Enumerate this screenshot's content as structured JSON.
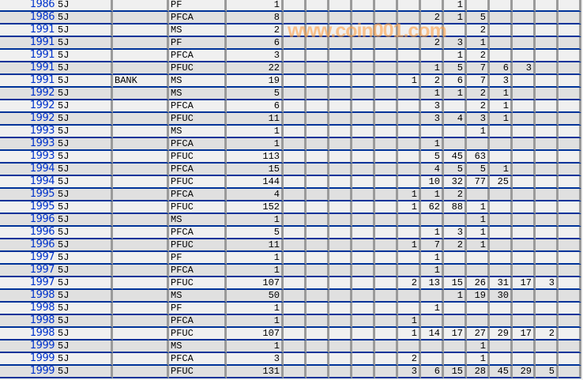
{
  "table": {
    "rows": [
      {
        "year": "1986",
        "code": "5J",
        "note": "",
        "grade": "PF",
        "count": "1",
        "cells": [
          "",
          "",
          "",
          "",
          "",
          "",
          "",
          "1",
          "",
          "",
          "",
          "",
          ""
        ]
      },
      {
        "year": "1986",
        "code": "5J",
        "note": "",
        "grade": "PFCA",
        "count": "8",
        "cells": [
          "",
          "",
          "",
          "",
          "",
          "",
          "2",
          "1",
          "5",
          "",
          "",
          "",
          ""
        ]
      },
      {
        "year": "1991",
        "code": "5J",
        "note": "",
        "grade": "MS",
        "count": "2",
        "cells": [
          "",
          "",
          "",
          "",
          "",
          "",
          "",
          "",
          "2",
          "",
          "",
          "",
          ""
        ]
      },
      {
        "year": "1991",
        "code": "5J",
        "note": "",
        "grade": "PF",
        "count": "6",
        "cells": [
          "",
          "",
          "",
          "",
          "",
          "",
          "2",
          "3",
          "1",
          "",
          "",
          "",
          ""
        ]
      },
      {
        "year": "1991",
        "code": "5J",
        "note": "",
        "grade": "PFCA",
        "count": "3",
        "cells": [
          "",
          "",
          "",
          "",
          "",
          "",
          "",
          "1",
          "2",
          "",
          "",
          "",
          ""
        ]
      },
      {
        "year": "1991",
        "code": "5J",
        "note": "",
        "grade": "PFUC",
        "count": "22",
        "cells": [
          "",
          "",
          "",
          "",
          "",
          "",
          "1",
          "5",
          "7",
          "6",
          "3",
          "",
          ""
        ]
      },
      {
        "year": "1991",
        "code": "5J",
        "note": "BANK",
        "grade": "MS",
        "count": "19",
        "cells": [
          "",
          "",
          "",
          "",
          "",
          "1",
          "2",
          "6",
          "7",
          "3",
          "",
          "",
          ""
        ]
      },
      {
        "year": "1992",
        "code": "5J",
        "note": "",
        "grade": "MS",
        "count": "5",
        "cells": [
          "",
          "",
          "",
          "",
          "",
          "",
          "1",
          "1",
          "2",
          "1",
          "",
          "",
          ""
        ]
      },
      {
        "year": "1992",
        "code": "5J",
        "note": "",
        "grade": "PFCA",
        "count": "6",
        "cells": [
          "",
          "",
          "",
          "",
          "",
          "",
          "3",
          "",
          "2",
          "1",
          "",
          "",
          ""
        ]
      },
      {
        "year": "1992",
        "code": "5J",
        "note": "",
        "grade": "PFUC",
        "count": "11",
        "cells": [
          "",
          "",
          "",
          "",
          "",
          "",
          "3",
          "4",
          "3",
          "1",
          "",
          "",
          ""
        ]
      },
      {
        "year": "1993",
        "code": "5J",
        "note": "",
        "grade": "MS",
        "count": "1",
        "cells": [
          "",
          "",
          "",
          "",
          "",
          "",
          "",
          "",
          "1",
          "",
          "",
          "",
          ""
        ]
      },
      {
        "year": "1993",
        "code": "5J",
        "note": "",
        "grade": "PFCA",
        "count": "1",
        "cells": [
          "",
          "",
          "",
          "",
          "",
          "",
          "1",
          "",
          "",
          "",
          "",
          "",
          ""
        ]
      },
      {
        "year": "1993",
        "code": "5J",
        "note": "",
        "grade": "PFUC",
        "count": "113",
        "cells": [
          "",
          "",
          "",
          "",
          "",
          "",
          "5",
          "45",
          "63",
          "",
          "",
          "",
          ""
        ]
      },
      {
        "year": "1994",
        "code": "5J",
        "note": "",
        "grade": "PFCA",
        "count": "15",
        "cells": [
          "",
          "",
          "",
          "",
          "",
          "",
          "4",
          "5",
          "5",
          "1",
          "",
          "",
          ""
        ]
      },
      {
        "year": "1994",
        "code": "5J",
        "note": "",
        "grade": "PFUC",
        "count": "144",
        "cells": [
          "",
          "",
          "",
          "",
          "",
          "",
          "10",
          "32",
          "77",
          "25",
          "",
          "",
          ""
        ]
      },
      {
        "year": "1995",
        "code": "5J",
        "note": "",
        "grade": "PFCA",
        "count": "4",
        "cells": [
          "",
          "",
          "",
          "",
          "",
          "1",
          "1",
          "2",
          "",
          "",
          "",
          "",
          ""
        ]
      },
      {
        "year": "1995",
        "code": "5J",
        "note": "",
        "grade": "PFUC",
        "count": "152",
        "cells": [
          "",
          "",
          "",
          "",
          "",
          "1",
          "62",
          "88",
          "1",
          "",
          "",
          "",
          ""
        ]
      },
      {
        "year": "1996",
        "code": "5J",
        "note": "",
        "grade": "MS",
        "count": "1",
        "cells": [
          "",
          "",
          "",
          "",
          "",
          "",
          "",
          "",
          "1",
          "",
          "",
          "",
          ""
        ]
      },
      {
        "year": "1996",
        "code": "5J",
        "note": "",
        "grade": "PFCA",
        "count": "5",
        "cells": [
          "",
          "",
          "",
          "",
          "",
          "",
          "1",
          "3",
          "1",
          "",
          "",
          "",
          ""
        ]
      },
      {
        "year": "1996",
        "code": "5J",
        "note": "",
        "grade": "PFUC",
        "count": "11",
        "cells": [
          "",
          "",
          "",
          "",
          "",
          "1",
          "7",
          "2",
          "1",
          "",
          "",
          "",
          ""
        ]
      },
      {
        "year": "1997",
        "code": "5J",
        "note": "",
        "grade": "PF",
        "count": "1",
        "cells": [
          "",
          "",
          "",
          "",
          "",
          "",
          "1",
          "",
          "",
          "",
          "",
          "",
          ""
        ]
      },
      {
        "year": "1997",
        "code": "5J",
        "note": "",
        "grade": "PFCA",
        "count": "1",
        "cells": [
          "",
          "",
          "",
          "",
          "",
          "",
          "1",
          "",
          "",
          "",
          "",
          "",
          ""
        ]
      },
      {
        "year": "1997",
        "code": "5J",
        "note": "",
        "grade": "PFUC",
        "count": "107",
        "cells": [
          "",
          "",
          "",
          "",
          "",
          "2",
          "13",
          "15",
          "26",
          "31",
          "17",
          "3",
          ""
        ]
      },
      {
        "year": "1998",
        "code": "5J",
        "note": "",
        "grade": "MS",
        "count": "50",
        "cells": [
          "",
          "",
          "",
          "",
          "",
          "",
          "",
          "1",
          "19",
          "30",
          "",
          "",
          ""
        ]
      },
      {
        "year": "1998",
        "code": "5J",
        "note": "",
        "grade": "PF",
        "count": "1",
        "cells": [
          "",
          "",
          "",
          "",
          "",
          "",
          "1",
          "",
          "",
          "",
          "",
          "",
          ""
        ]
      },
      {
        "year": "1998",
        "code": "5J",
        "note": "",
        "grade": "PFCA",
        "count": "1",
        "cells": [
          "",
          "",
          "",
          "",
          "",
          "1",
          "",
          "",
          "",
          "",
          "",
          "",
          ""
        ]
      },
      {
        "year": "1998",
        "code": "5J",
        "note": "",
        "grade": "PFUC",
        "count": "107",
        "cells": [
          "",
          "",
          "",
          "",
          "",
          "1",
          "14",
          "17",
          "27",
          "29",
          "17",
          "2",
          ""
        ]
      },
      {
        "year": "1999",
        "code": "5J",
        "note": "",
        "grade": "MS",
        "count": "1",
        "cells": [
          "",
          "",
          "",
          "",
          "",
          "",
          "",
          "",
          "1",
          "",
          "",
          "",
          ""
        ]
      },
      {
        "year": "1999",
        "code": "5J",
        "note": "",
        "grade": "PFCA",
        "count": "3",
        "cells": [
          "",
          "",
          "",
          "",
          "",
          "2",
          "",
          "",
          "1",
          "",
          "",
          "",
          ""
        ]
      },
      {
        "year": "1999",
        "code": "5J",
        "note": "",
        "grade": "PFUC",
        "count": "131",
        "cells": [
          "",
          "",
          "",
          "",
          "",
          "3",
          "6",
          "15",
          "28",
          "45",
          "29",
          "5",
          ""
        ]
      }
    ]
  },
  "watermark": "www.coin001.com"
}
